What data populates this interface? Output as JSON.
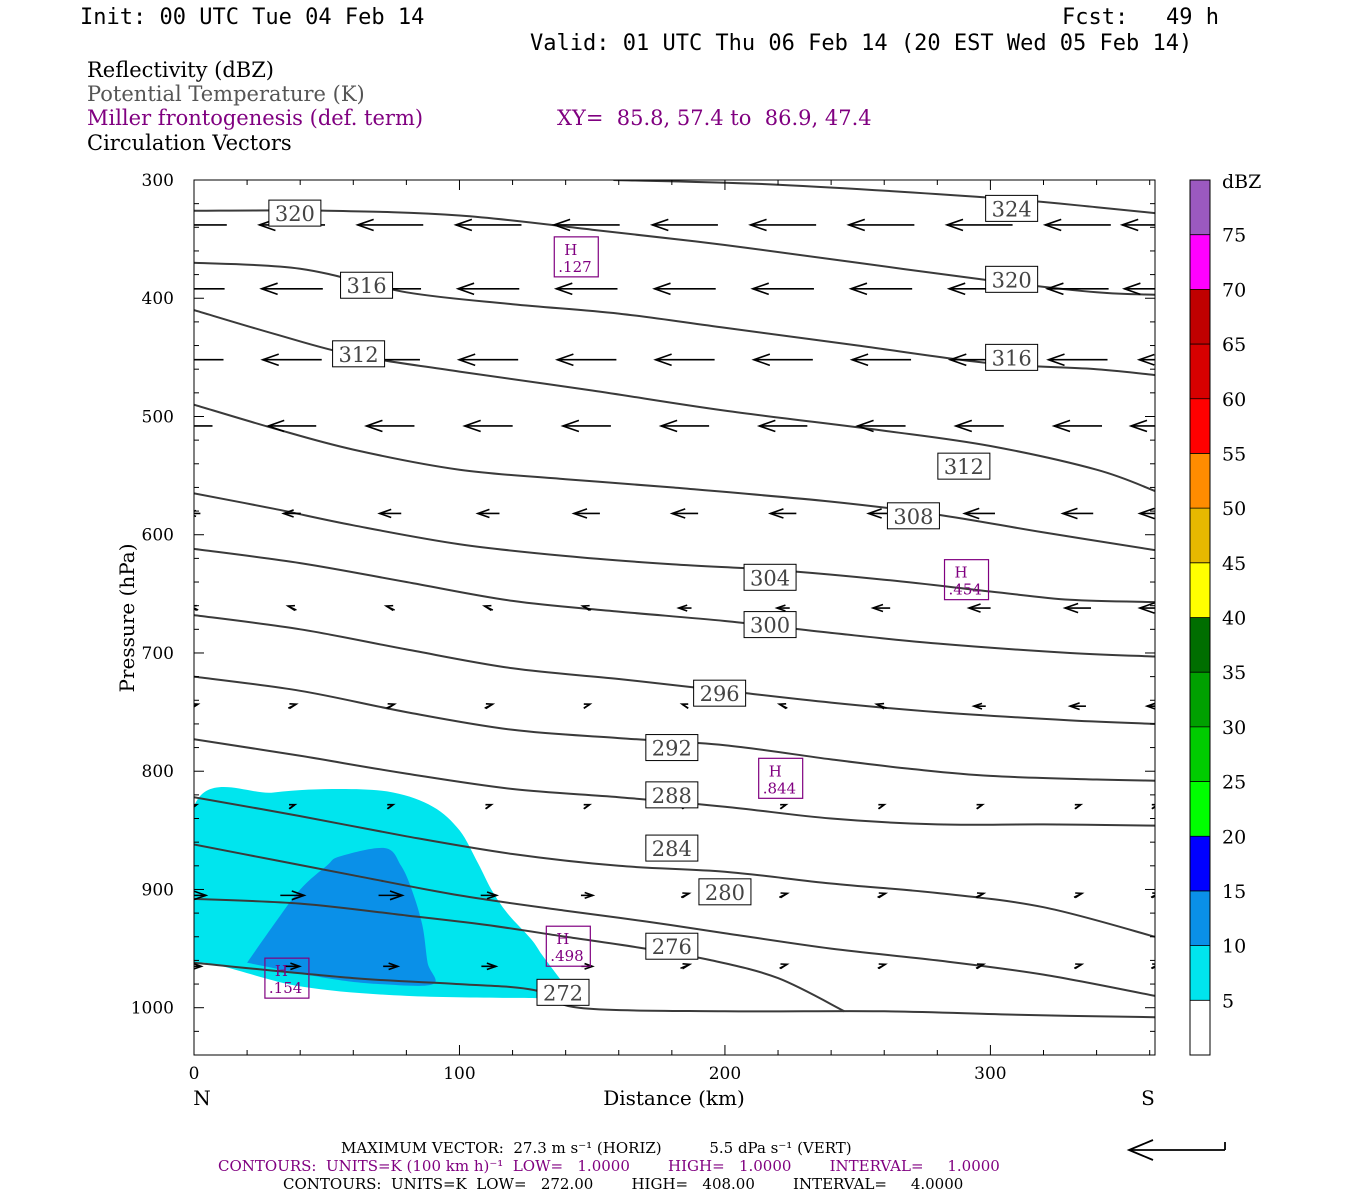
{
  "header": {
    "init": "Init: 00 UTC Tue 04 Feb 14",
    "fcst_label": "Fcst:",
    "fcst_value": "49 h",
    "valid": "Valid: 01 UTC Thu 06 Feb 14 (20 EST Wed 05 Feb 14)"
  },
  "legend": {
    "line1": "Reflectivity (dBZ)",
    "line2": "Potential Temperature (K)",
    "line3": "Miller frontogenesis (def. term)",
    "xy": "XY=  85.8, 57.4 to  86.9, 47.4",
    "line4": "Circulation Vectors"
  },
  "colors": {
    "theta": "#3a3a3a",
    "frontogenesis": "#800080",
    "gray_text": "#555555"
  },
  "chart_data": {
    "type": "cross-section",
    "xlabel": "Distance (km)",
    "ylabel": "Pressure (hPa)",
    "xlim": [
      0,
      362
    ],
    "ylim": [
      1040,
      300
    ],
    "x_ticks": [
      "0",
      "100",
      "200",
      "300"
    ],
    "y_ticks": [
      "300",
      "400",
      "500",
      "600",
      "700",
      "800",
      "900",
      "1000"
    ],
    "x_end_labels": {
      "left": "N",
      "right": "S"
    },
    "colorbar": {
      "unit": "dBZ",
      "levels": [
        "5",
        "10",
        "15",
        "20",
        "25",
        "30",
        "35",
        "40",
        "45",
        "50",
        "55",
        "60",
        "65",
        "70",
        "75"
      ],
      "colors": [
        "#ffffff",
        "#00e5ee",
        "#0a90e8",
        "#0000ff",
        "#00ff00",
        "#00cc00",
        "#00a000",
        "#006e00",
        "#ffff00",
        "#e6b800",
        "#ff8c00",
        "#ff0000",
        "#d70000",
        "#c00000",
        "#ff00ff",
        "#9b59c0"
      ]
    },
    "reflectivity": [
      {
        "level": 5,
        "color": "#00e5ee",
        "polygon": [
          [
            0,
            1000
          ],
          [
            0,
            830
          ],
          [
            30,
            818
          ],
          [
            55,
            815
          ],
          [
            75,
            818
          ],
          [
            90,
            830
          ],
          [
            100,
            850
          ],
          [
            107,
            878
          ],
          [
            112,
            900
          ],
          [
            118,
            920
          ],
          [
            127,
            942
          ],
          [
            131,
            955
          ],
          [
            136,
            970
          ],
          [
            140,
            982
          ],
          [
            143,
            992
          ],
          [
            130,
            992
          ],
          [
            80,
            990
          ],
          [
            40,
            982
          ],
          [
            0,
            962
          ]
        ]
      },
      {
        "level": 10,
        "color": "#0a90e8",
        "polygon": [
          [
            20,
            962
          ],
          [
            30,
            930
          ],
          [
            40,
            900
          ],
          [
            50,
            880
          ],
          [
            55,
            872
          ],
          [
            72,
            865
          ],
          [
            78,
            880
          ],
          [
            82,
            900
          ],
          [
            86,
            930
          ],
          [
            88,
            962
          ],
          [
            90,
            980
          ],
          [
            70,
            980
          ],
          [
            50,
            975
          ]
        ]
      }
    ],
    "theta_contours": [
      {
        "label": "324",
        "points": [
          [
            158,
            300
          ],
          [
            220,
            304
          ],
          [
            300,
            315
          ],
          [
            340,
            323
          ],
          [
            362,
            328
          ]
        ],
        "labels_at": [
          [
            308,
            324
          ]
        ]
      },
      {
        "label": "320",
        "points": [
          [
            0,
            326
          ],
          [
            50,
            326
          ],
          [
            100,
            330
          ],
          [
            150,
            342
          ],
          [
            200,
            355
          ],
          [
            250,
            370
          ],
          [
            300,
            385
          ],
          [
            340,
            395
          ],
          [
            362,
            397
          ]
        ],
        "labels_at": [
          [
            38,
            328
          ],
          [
            308,
            384
          ]
        ]
      },
      {
        "label": "316",
        "points": [
          [
            0,
            370
          ],
          [
            40,
            375
          ],
          [
            80,
            395
          ],
          [
            120,
            405
          ],
          [
            160,
            413
          ],
          [
            200,
            425
          ],
          [
            250,
            440
          ],
          [
            300,
            455
          ],
          [
            340,
            460
          ],
          [
            362,
            465
          ]
        ],
        "labels_at": [
          [
            65,
            389
          ],
          [
            308,
            450
          ]
        ]
      },
      {
        "label": "312",
        "points": [
          [
            0,
            410
          ],
          [
            30,
            430
          ],
          [
            60,
            448
          ],
          [
            100,
            462
          ],
          [
            150,
            478
          ],
          [
            200,
            495
          ],
          [
            260,
            512
          ],
          [
            300,
            525
          ],
          [
            340,
            545
          ],
          [
            362,
            563
          ]
        ],
        "labels_at": [
          [
            62,
            447
          ],
          [
            290,
            542
          ]
        ]
      },
      {
        "label": "308",
        "points": [
          [
            0,
            490
          ],
          [
            30,
            510
          ],
          [
            60,
            528
          ],
          [
            100,
            545
          ],
          [
            140,
            553
          ],
          [
            180,
            560
          ],
          [
            240,
            572
          ],
          [
            280,
            583
          ],
          [
            320,
            598
          ],
          [
            362,
            613
          ]
        ],
        "labels_at": [
          [
            271,
            584
          ]
        ]
      },
      {
        "label": "304",
        "points": [
          [
            0,
            565
          ],
          [
            30,
            578
          ],
          [
            60,
            592
          ],
          [
            100,
            608
          ],
          [
            140,
            618
          ],
          [
            180,
            625
          ],
          [
            220,
            630
          ],
          [
            260,
            638
          ],
          [
            300,
            648
          ],
          [
            330,
            655
          ],
          [
            362,
            657
          ]
        ],
        "labels_at": [
          [
            217,
            636
          ]
        ]
      },
      {
        "label": "300",
        "points": [
          [
            0,
            612
          ],
          [
            40,
            624
          ],
          [
            80,
            640
          ],
          [
            120,
            656
          ],
          [
            160,
            665
          ],
          [
            200,
            673
          ],
          [
            240,
            683
          ],
          [
            280,
            692
          ],
          [
            330,
            700
          ],
          [
            362,
            703
          ]
        ],
        "labels_at": [
          [
            217,
            676
          ]
        ]
      },
      {
        "label": "296",
        "points": [
          [
            0,
            668
          ],
          [
            40,
            680
          ],
          [
            80,
            697
          ],
          [
            120,
            713
          ],
          [
            160,
            722
          ],
          [
            200,
            732
          ],
          [
            240,
            742
          ],
          [
            280,
            750
          ],
          [
            330,
            757
          ],
          [
            362,
            760
          ]
        ],
        "labels_at": [
          [
            198,
            734
          ]
        ]
      },
      {
        "label": "292",
        "points": [
          [
            0,
            720
          ],
          [
            40,
            732
          ],
          [
            80,
            750
          ],
          [
            120,
            765
          ],
          [
            160,
            772
          ],
          [
            200,
            778
          ],
          [
            240,
            790
          ],
          [
            270,
            798
          ],
          [
            300,
            804
          ],
          [
            340,
            807
          ],
          [
            362,
            808
          ]
        ],
        "labels_at": [
          [
            180,
            780
          ]
        ]
      },
      {
        "label": "288",
        "points": [
          [
            0,
            773
          ],
          [
            40,
            787
          ],
          [
            80,
            802
          ],
          [
            120,
            815
          ],
          [
            160,
            822
          ],
          [
            200,
            830
          ],
          [
            240,
            840
          ],
          [
            280,
            845
          ],
          [
            320,
            845
          ],
          [
            362,
            846
          ]
        ],
        "labels_at": [
          [
            180,
            820
          ]
        ]
      },
      {
        "label": "284",
        "points": [
          [
            0,
            822
          ],
          [
            40,
            838
          ],
          [
            80,
            855
          ],
          [
            120,
            870
          ],
          [
            160,
            880
          ],
          [
            200,
            885
          ],
          [
            240,
            895
          ],
          [
            280,
            903
          ],
          [
            320,
            915
          ],
          [
            362,
            940
          ]
        ],
        "labels_at": [
          [
            180,
            865
          ]
        ]
      },
      {
        "label": "280",
        "points": [
          [
            0,
            862
          ],
          [
            30,
            875
          ],
          [
            60,
            888
          ],
          [
            100,
            905
          ],
          [
            140,
            918
          ],
          [
            170,
            927
          ],
          [
            200,
            937
          ],
          [
            240,
            950
          ],
          [
            280,
            960
          ],
          [
            320,
            972
          ],
          [
            362,
            990
          ]
        ],
        "labels_at": [
          [
            200,
            902
          ]
        ]
      },
      {
        "label": "276",
        "points": [
          [
            0,
            908
          ],
          [
            40,
            912
          ],
          [
            80,
            922
          ],
          [
            110,
            930
          ],
          [
            140,
            940
          ],
          [
            170,
            950
          ],
          [
            195,
            960
          ],
          [
            220,
            975
          ],
          [
            245,
            1003
          ]
        ],
        "labels_at": [
          [
            180,
            948
          ]
        ]
      },
      {
        "label": "272",
        "points": [
          [
            0,
            962
          ],
          [
            60,
            975
          ],
          [
            100,
            980
          ],
          [
            128,
            985
          ],
          [
            145,
            1000
          ],
          [
            200,
            1003
          ],
          [
            260,
            1003
          ],
          [
            310,
            1006
          ],
          [
            362,
            1008
          ]
        ],
        "labels_at": [
          [
            139,
            987
          ]
        ]
      }
    ],
    "frontogenesis_highs": [
      {
        "x": 144,
        "p": 365,
        "label": "H",
        "value": ".127"
      },
      {
        "x": 291,
        "p": 638,
        "label": "H",
        "value": ".454"
      },
      {
        "x": 221,
        "p": 806,
        "label": "H",
        "value": ".844"
      },
      {
        "x": 141,
        "p": 948,
        "label": "H",
        "value": ".498"
      },
      {
        "x": 35,
        "p": 975,
        "label": "H",
        "value": ".154"
      }
    ],
    "vectors": {
      "x_columns": [
        0,
        37,
        74,
        111,
        148,
        185,
        222,
        259,
        296,
        333,
        362
      ],
      "rows": [
        {
          "p": 338,
          "u": [
            -1,
            -1,
            -1,
            -1,
            -1,
            -1,
            -1,
            -1,
            -1,
            -1,
            -1
          ],
          "len": 28
        },
        {
          "p": 392,
          "u": [
            -1,
            -1,
            -1,
            -1,
            -1,
            -1,
            -1,
            -1,
            -1,
            -1,
            -1
          ],
          "len": 26
        },
        {
          "p": 452,
          "u": [
            -1,
            -1,
            -1,
            -1,
            -1,
            -1,
            -1,
            -1,
            -1,
            -1,
            -0.5
          ],
          "len": 25
        },
        {
          "p": 508,
          "u": [
            -0.6,
            -0.8,
            -0.8,
            -0.8,
            -0.8,
            -0.8,
            -0.8,
            -0.8,
            -0.8,
            -0.8,
            -0.8
          ],
          "len": 25
        },
        {
          "p": 582,
          "u": [
            -0.2,
            -0.3,
            -0.4,
            -0.4,
            -0.5,
            -0.5,
            -0.5,
            -0.5,
            -0.6,
            -0.6,
            -0.6
          ],
          "len": 20
        },
        {
          "p": 662,
          "u": [
            -0.1,
            -0.1,
            -0.1,
            -0.1,
            -0.1,
            -0.2,
            -0.2,
            -0.3,
            -0.4,
            -0.5,
            -0.6
          ],
          "len": 20
        },
        {
          "p": 745,
          "u": [
            0.1,
            0.1,
            0.1,
            0.1,
            0.05,
            -0.05,
            -0.1,
            -0.15,
            -0.2,
            -0.3,
            -0.3
          ],
          "len": 18
        },
        {
          "p": 830,
          "u": [
            0.05,
            0.05,
            0.05,
            0.05,
            0.05,
            0.05,
            0.05,
            0.05,
            0.05,
            0.05,
            0.05
          ],
          "len": 12
        },
        {
          "p": 905,
          "u": [
            0.5,
            0.5,
            0.5,
            0.3,
            0.2,
            0.1,
            0.1,
            0.1,
            0.1,
            0.1,
            0.1
          ],
          "len": 18
        },
        {
          "p": 965,
          "u": [
            0.3,
            0.3,
            0.3,
            0.3,
            0.2,
            0.15,
            0.1,
            0.1,
            0.1,
            0.1,
            0.1
          ],
          "len": 16
        }
      ]
    }
  },
  "footer": {
    "max_vector": "MAXIMUM VECTOR:  27.3 m s⁻¹ (HORIZ)          5.5 dPa s⁻¹ (VERT)",
    "contours_purple": "CONTOURS:  UNITS=K (100 km h)⁻¹  LOW=   1.0000        HIGH=   1.0000        INTERVAL=     1.0000",
    "contours_black": "CONTOURS:  UNITS=K  LOW=   272.00        HIGH=   408.00        INTERVAL=     4.0000"
  }
}
